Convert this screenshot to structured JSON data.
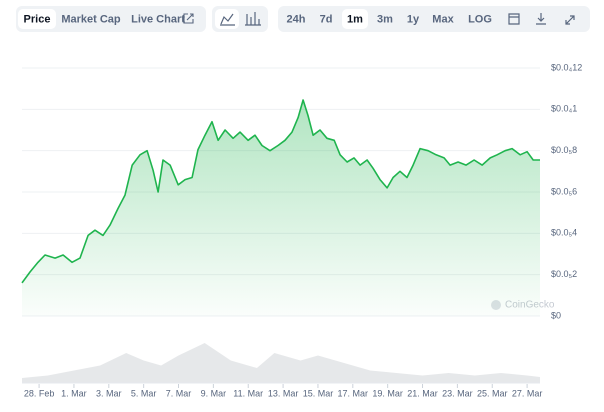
{
  "toolbar": {
    "tabs": [
      "Price",
      "Market Cap",
      "Live Chart"
    ],
    "active_tab": 0,
    "ranges": [
      "24h",
      "7d",
      "1m",
      "3m",
      "1y",
      "Max",
      "LOG"
    ],
    "active_range": 2
  },
  "watermark": "CoinGecko",
  "chart_data": {
    "type": "line",
    "series": [
      {
        "color": "#1fb44e",
        "x": [
          -0.98,
          -0.52,
          -0.06,
          0.34,
          0.92,
          1.38,
          1.89,
          2.35,
          2.81,
          3.21,
          3.67,
          4.07,
          4.53,
          4.93,
          5.34,
          5.79,
          6.2,
          6.54,
          6.83,
          7.11,
          7.52,
          7.98,
          8.38,
          8.78,
          9.12,
          9.52,
          9.92,
          10.27,
          10.67,
          11.13,
          11.53,
          11.99,
          12.39,
          12.79,
          13.25,
          13.71,
          14.11,
          14.51,
          14.86,
          15.15,
          15.43,
          15.72,
          16.12,
          16.52,
          16.93,
          17.27,
          17.67,
          18.07,
          18.42,
          18.82,
          19.16,
          19.56,
          19.97,
          20.31,
          20.71,
          21.11,
          21.46,
          21.86,
          22.32,
          22.78,
          23.24,
          23.58,
          24.04,
          24.5,
          24.96,
          25.42,
          25.88,
          26.28,
          26.74,
          27.14,
          27.6,
          28.0,
          28.35,
          28.74
        ],
        "values": [
          1.6e-06,
          2.13e-06,
          2.6e-06,
          2.95e-06,
          2.8e-06,
          2.95e-06,
          2.6e-06,
          2.8e-06,
          3.9e-06,
          4.15e-06,
          3.9e-06,
          4.4e-06,
          5.2e-06,
          5.85e-06,
          7.3e-06,
          7.8e-06,
          8e-06,
          7.05e-06,
          6e-06,
          7.55e-06,
          7.3e-06,
          6.35e-06,
          6.6e-06,
          6.7e-06,
          8.05e-06,
          8.75e-06,
          9.4e-06,
          8.5e-06,
          9e-06,
          8.6e-06,
          8.9e-06,
          8.5e-06,
          8.75e-06,
          8.25e-06,
          8e-06,
          8.25e-06,
          8.5e-06,
          8.9e-06,
          9.6e-06,
          1.045e-05,
          9.7e-06,
          8.75e-06,
          9e-06,
          8.6e-06,
          8.5e-06,
          7.8e-06,
          7.45e-06,
          7.65e-06,
          7.3e-06,
          7.55e-06,
          7.15e-06,
          6.6e-06,
          6.2e-06,
          6.7e-06,
          7e-06,
          6.7e-06,
          7.3e-06,
          8.1e-06,
          8e-06,
          7.8e-06,
          7.65e-06,
          7.3e-06,
          7.45e-06,
          7.3e-06,
          7.55e-06,
          7.3e-06,
          7.65e-06,
          7.8e-06,
          8e-06,
          8.1e-06,
          7.8e-06,
          7.95e-06,
          7.55e-06,
          7.55e-06
        ]
      }
    ],
    "volume": {
      "color": "#d5d8dc",
      "x": [
        -0.98,
        0.5,
        2,
        3.5,
        5,
        6,
        7,
        8,
        9.5,
        11,
        12.5,
        13.5,
        15,
        16,
        17.5,
        19,
        20.5,
        22,
        23.5,
        25,
        26.5,
        28,
        28.74
      ],
      "values": [
        10,
        15,
        25,
        35,
        60,
        45,
        35,
        55,
        80,
        45,
        30,
        60,
        45,
        55,
        40,
        25,
        20,
        15,
        20,
        15,
        20,
        15,
        12
      ],
      "ylim": [
        0,
        100
      ]
    },
    "xlim": [
      -0.98,
      28.74
    ],
    "xticks": [
      {
        "value": 0,
        "label": "28. Feb"
      },
      {
        "value": 2,
        "label": "1. Mar"
      },
      {
        "value": 4,
        "label": "3. Mar"
      },
      {
        "value": 6,
        "label": "5. Mar"
      },
      {
        "value": 8,
        "label": "7. Mar"
      },
      {
        "value": 10,
        "label": "9. Mar"
      },
      {
        "value": 12,
        "label": "11. Mar"
      },
      {
        "value": 14,
        "label": "13. Mar"
      },
      {
        "value": 16,
        "label": "15. Mar"
      },
      {
        "value": 18,
        "label": "17. Mar"
      },
      {
        "value": 20,
        "label": "19. Mar"
      },
      {
        "value": 22,
        "label": "21. Mar"
      },
      {
        "value": 24,
        "label": "23. Mar"
      },
      {
        "value": 26,
        "label": "25. Mar"
      },
      {
        "value": 28,
        "label": "27. Mar"
      }
    ],
    "ylim": [
      0,
      1.2e-05
    ],
    "yticks": [
      {
        "value": 0,
        "label": "$0"
      },
      {
        "value": 2e-06,
        "label": "$0.0₅2"
      },
      {
        "value": 4e-06,
        "label": "$0.0₅4"
      },
      {
        "value": 6e-06,
        "label": "$0.0₅6"
      },
      {
        "value": 8e-06,
        "label": "$0.0₅8"
      },
      {
        "value": 1e-05,
        "label": "$0.0₄1"
      },
      {
        "value": 1.2e-05,
        "label": "$0.0₄12"
      }
    ],
    "grid": true
  }
}
